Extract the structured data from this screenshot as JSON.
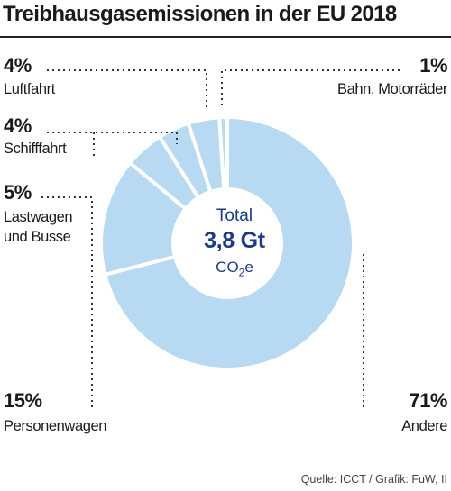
{
  "title": "Treibhausgasemissionen in der EU 2018",
  "source": "Quelle: ICCT / Grafik: FuW, II",
  "center": {
    "label": "Total",
    "value": "3,8 Gt",
    "unit": "CO2e"
  },
  "chart_data": {
    "type": "pie",
    "title": "Treibhausgasemissionen in der EU 2018",
    "total": "3,8 Gt CO2e",
    "slices": [
      {
        "label": "Andere",
        "value": 71,
        "display": "71%"
      },
      {
        "label": "Personenwagen",
        "value": 15,
        "display": "15%"
      },
      {
        "label": "Lastwagen und Busse",
        "value": 5,
        "display": "5%"
      },
      {
        "label": "Schifffahrt",
        "value": 4,
        "display": "4%"
      },
      {
        "label": "Luftfahrt",
        "value": 4,
        "display": "4%"
      },
      {
        "label": "Bahn, Motorräder",
        "value": 1,
        "display": "1%"
      }
    ],
    "colors": {
      "slice": "#b8d9f2",
      "separator": "#ffffff",
      "center_text": "#1b3a8c"
    }
  }
}
